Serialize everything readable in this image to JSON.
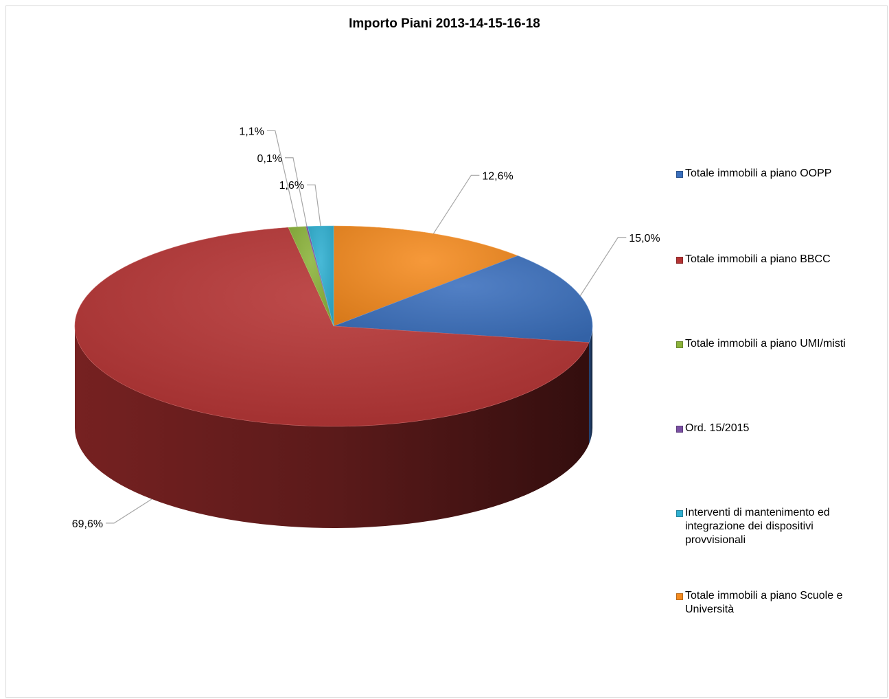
{
  "chart_data": {
    "type": "pie",
    "title": "Importo Piani 2013-14-15-16-18",
    "slices": [
      {
        "name": "Totale immobili a piano Scuole e Università",
        "value": 12.6,
        "label": "12,6%",
        "color": "#f58b1f"
      },
      {
        "name": "Totale immobili a piano OOPP",
        "value": 15.0,
        "label": "15,0%",
        "color": "#3a6fbd"
      },
      {
        "name": "Totale immobili a piano BBCC",
        "value": 69.6,
        "label": "69,6%",
        "color": "#b53333"
      },
      {
        "name": "Totale immobili a piano UMI/misti",
        "value": 1.1,
        "label": "1,1%",
        "color": "#8bb33a"
      },
      {
        "name": "Ord. 15/2015",
        "value": 0.1,
        "label": "0,1%",
        "color": "#7a4fa3"
      },
      {
        "name": "Interventi di mantenimento ed integrazione dei dispositivi provvisionali",
        "value": 1.6,
        "label": "1,6%",
        "color": "#2fb0d1"
      }
    ],
    "legend": {
      "position": "right",
      "items": [
        {
          "label": "Totale immobili a piano OOPP",
          "color": "#3a6fbd"
        },
        {
          "label": "Totale immobili a piano BBCC",
          "color": "#b53333"
        },
        {
          "label": "Totale immobili a piano UMI/misti",
          "color": "#8bb33a"
        },
        {
          "label": "Ord. 15/2015",
          "color": "#7a4fa3"
        },
        {
          "label": "Interventi di mantenimento ed integrazione dei dispositivi provvisionali",
          "color": "#2fb0d1"
        },
        {
          "label": "Totale immobili a piano Scuole e Università",
          "color": "#f58b1f"
        }
      ]
    }
  }
}
